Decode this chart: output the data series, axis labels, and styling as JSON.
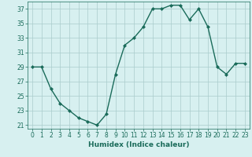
{
  "x": [
    0,
    1,
    2,
    3,
    4,
    5,
    6,
    7,
    8,
    9,
    10,
    11,
    12,
    13,
    14,
    15,
    16,
    17,
    18,
    19,
    20,
    21,
    22,
    23
  ],
  "y": [
    29,
    29,
    26,
    24,
    23,
    22,
    21.5,
    21,
    22.5,
    28,
    32,
    33,
    34.5,
    37,
    37,
    37.5,
    37.5,
    35.5,
    37,
    34.5,
    29,
    28,
    29.5,
    29.5
  ],
  "line_color": "#1a6b5a",
  "marker": "D",
  "marker_size": 2,
  "bg_color": "#d7f0f0",
  "grid_color": "#aacccc",
  "xlabel": "Humidex (Indice chaleur)",
  "xlim": [
    -0.5,
    23.5
  ],
  "ylim": [
    20.5,
    38
  ],
  "yticks": [
    21,
    23,
    25,
    27,
    29,
    31,
    33,
    35,
    37
  ],
  "xticks": [
    0,
    1,
    2,
    3,
    4,
    5,
    6,
    7,
    8,
    9,
    10,
    11,
    12,
    13,
    14,
    15,
    16,
    17,
    18,
    19,
    20,
    21,
    22,
    23
  ],
  "tick_fontsize": 5.5,
  "xlabel_fontsize": 6.5,
  "line_width": 1.0
}
